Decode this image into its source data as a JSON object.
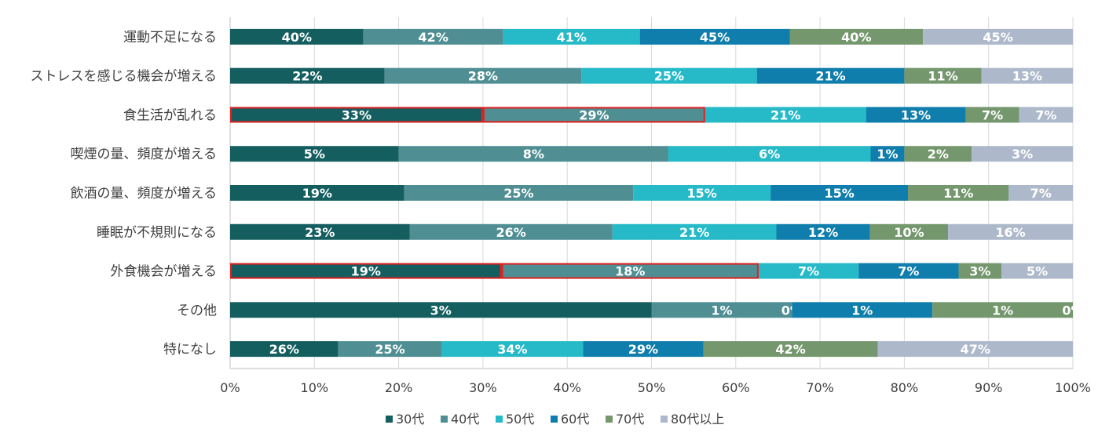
{
  "chart_data": {
    "type": "bar",
    "orientation": "horizontal",
    "stacked": "percent",
    "title": "",
    "xlabel": "",
    "ylabel": "",
    "xlim": [
      0,
      100
    ],
    "x_ticks": [
      "0%",
      "10%",
      "20%",
      "30%",
      "40%",
      "50%",
      "60%",
      "70%",
      "80%",
      "90%",
      "100%"
    ],
    "grid": true,
    "legend_position": "bottom",
    "categories": [
      "運動不足になる",
      "ストレスを感じる機会が増える",
      "食生活が乱れる",
      "喫煙の量、頻度が増える",
      "飲酒の量、頻度が増える",
      "睡眠が不規則になる",
      "外食機会が増える",
      "その他",
      "特になし"
    ],
    "series": [
      {
        "name": "30代",
        "color": "#155e60",
        "values": [
          40,
          22,
          33,
          5,
          19,
          23,
          19,
          3,
          26
        ],
        "labels": [
          "40%",
          "22%",
          "33%",
          "5%",
          "19%",
          "23%",
          "19%",
          "3%",
          "26%"
        ]
      },
      {
        "name": "40代",
        "color": "#4f8f94",
        "values": [
          42,
          28,
          29,
          8,
          25,
          26,
          18,
          1,
          25
        ],
        "labels": [
          "42%",
          "28%",
          "29%",
          "8%",
          "25%",
          "26%",
          "18%",
          "1%",
          "25%"
        ]
      },
      {
        "name": "50代",
        "color": "#26bac8",
        "values": [
          41,
          25,
          21,
          6,
          15,
          21,
          7,
          0,
          34
        ],
        "labels": [
          "41%",
          "25%",
          "21%",
          "6%",
          "15%",
          "21%",
          "7%",
          "0%",
          "34%"
        ]
      },
      {
        "name": "60代",
        "color": "#0f7eac",
        "values": [
          45,
          21,
          13,
          1,
          15,
          12,
          7,
          1,
          29
        ],
        "labels": [
          "45%",
          "21%",
          "13%",
          "1%",
          "15%",
          "12%",
          "7%",
          "1%",
          "29%"
        ]
      },
      {
        "name": "70代",
        "color": "#74976d",
        "values": [
          40,
          11,
          7,
          2,
          11,
          10,
          3,
          1,
          42
        ],
        "labels": [
          "40%",
          "11%",
          "7%",
          "2%",
          "11%",
          "10%",
          "3%",
          "1%",
          "42%"
        ]
      },
      {
        "name": "80代以上",
        "color": "#adb9cb",
        "values": [
          45,
          13,
          7,
          3,
          7,
          16,
          5,
          0,
          47
        ],
        "labels": [
          "45%",
          "13%",
          "7%",
          "3%",
          "7%",
          "16%",
          "5%",
          "0%",
          "47%"
        ]
      }
    ],
    "highlights": [
      {
        "category": "食生活が乱れる",
        "series": [
          "30代",
          "40代"
        ],
        "color": "#e02020"
      },
      {
        "category": "外食機会が増える",
        "series": [
          "30代",
          "40代"
        ],
        "color": "#e02020"
      }
    ]
  }
}
